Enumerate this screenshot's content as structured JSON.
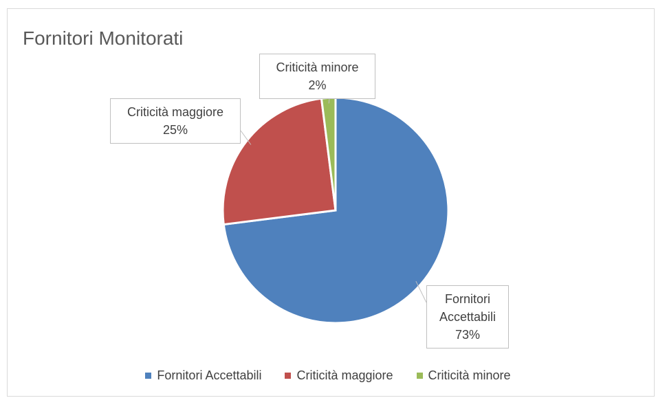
{
  "chart_data": {
    "type": "pie",
    "title": "Fornitori Monitorati",
    "categories": [
      "Fornitori Accettabili",
      "Criticità maggiore",
      "Criticità minore"
    ],
    "values": [
      73,
      25,
      2
    ],
    "value_labels": [
      "73%",
      "25%",
      "2%"
    ],
    "colors": [
      "#4f81bd",
      "#c0504d",
      "#9bbb59"
    ],
    "legend": "bottom"
  }
}
